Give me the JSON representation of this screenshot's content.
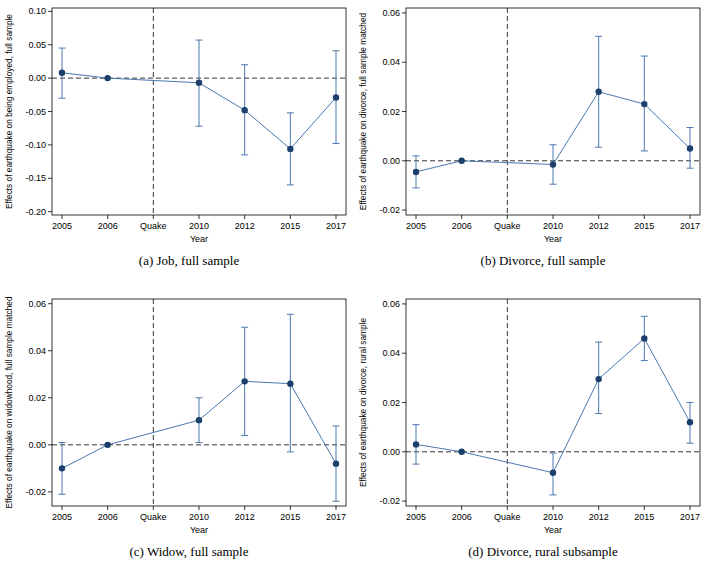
{
  "chart_data": [
    {
      "type": "line",
      "title": "(a) Job, full sample",
      "x_label": "Year",
      "y_label": "Effects of earthquake on being employed, full sample",
      "categories": [
        "2005",
        "2006",
        "Quake",
        "2010",
        "2012",
        "2015",
        "2017"
      ],
      "values": [
        0.008,
        0,
        null,
        -0.007,
        -0.048,
        -0.106,
        -0.029
      ],
      "lower": [
        -0.03,
        null,
        null,
        -0.072,
        -0.115,
        -0.16,
        -0.098
      ],
      "upper": [
        0.045,
        null,
        null,
        0.057,
        0.02,
        -0.052,
        0.041
      ],
      "vline": "Quake",
      "hline": 0,
      "ylim": [
        -0.205,
        0.105
      ],
      "yticks": [
        {
          "value": -0.2,
          "label": "-0.20"
        },
        {
          "value": -0.15,
          "label": "-0.15"
        },
        {
          "value": -0.1,
          "label": "-0.10"
        },
        {
          "value": -0.05,
          "label": "-0.05"
        },
        {
          "value": 0,
          "label": "0.00"
        },
        {
          "value": 0.05,
          "label": "0.05"
        },
        {
          "value": 0.1,
          "label": "0.10"
        }
      ],
      "color": "#1c3f6e",
      "marker": "circle"
    },
    {
      "type": "line",
      "title": "(b) Divorce, full sample",
      "x_label": "Year",
      "y_label": "Effects of earthquake on divorce, full sample matched",
      "categories": [
        "2005",
        "2006",
        "Quake",
        "2010",
        "2012",
        "2015",
        "2017"
      ],
      "values": [
        -0.0045,
        0,
        null,
        -0.0015,
        0.028,
        0.023,
        0.005
      ],
      "lower": [
        -0.011,
        null,
        null,
        -0.0095,
        0.0055,
        0.004,
        -0.003
      ],
      "upper": [
        0.002,
        null,
        null,
        0.0065,
        0.0505,
        0.0425,
        0.0135
      ],
      "vline": "Quake",
      "hline": 0,
      "ylim": [
        -0.022,
        0.062
      ],
      "yticks": [
        {
          "value": -0.02,
          "label": "-0.02"
        },
        {
          "value": 0,
          "label": "0.00"
        },
        {
          "value": 0.02,
          "label": "0.02"
        },
        {
          "value": 0.04,
          "label": "0.04"
        },
        {
          "value": 0.06,
          "label": "0.06"
        }
      ],
      "color": "#1c3f6e",
      "marker": "circle"
    },
    {
      "type": "line",
      "title": "(c) Widow, full sample",
      "x_label": "Year",
      "y_label": "Effects of earthquake on widowhood, full sample matched",
      "categories": [
        "2005",
        "2006",
        "Quake",
        "2010",
        "2012",
        "2015",
        "2017"
      ],
      "values": [
        -0.01,
        0,
        null,
        0.0105,
        0.027,
        0.026,
        -0.008
      ],
      "lower": [
        -0.021,
        null,
        null,
        0.001,
        0.004,
        -0.003,
        -0.024
      ],
      "upper": [
        0.001,
        null,
        null,
        0.02,
        0.05,
        0.0555,
        0.008
      ],
      "vline": "Quake",
      "hline": 0,
      "ylim": [
        -0.026,
        0.062
      ],
      "yticks": [
        {
          "value": -0.02,
          "label": "-0.02"
        },
        {
          "value": 0,
          "label": "0.00"
        },
        {
          "value": 0.02,
          "label": "0.02"
        },
        {
          "value": 0.04,
          "label": "0.04"
        },
        {
          "value": 0.06,
          "label": "0.06"
        }
      ],
      "color": "#1c3f6e",
      "marker": "circle"
    },
    {
      "type": "line",
      "title": "(d) Divorce, rural subsample",
      "x_label": "Year",
      "y_label": "Effects of earthquake on divorce, rural sample",
      "categories": [
        "2005",
        "2006",
        "Quake",
        "2010",
        "2012",
        "2015",
        "2017"
      ],
      "values": [
        0.003,
        0,
        null,
        -0.0085,
        0.0295,
        0.046,
        0.012
      ],
      "lower": [
        -0.005,
        null,
        null,
        -0.0175,
        0.0155,
        0.037,
        0.0035
      ],
      "upper": [
        0.011,
        null,
        null,
        -0.0005,
        0.0445,
        0.055,
        0.02
      ],
      "vline": "Quake",
      "hline": 0,
      "ylim": [
        -0.022,
        0.062
      ],
      "yticks": [
        {
          "value": -0.02,
          "label": "-0.02"
        },
        {
          "value": 0,
          "label": "0.00"
        },
        {
          "value": 0.02,
          "label": "0.02"
        },
        {
          "value": 0.04,
          "label": "0.04"
        },
        {
          "value": 0.06,
          "label": "0.06"
        }
      ],
      "color": "#1c3f6e",
      "marker": "circle"
    }
  ]
}
